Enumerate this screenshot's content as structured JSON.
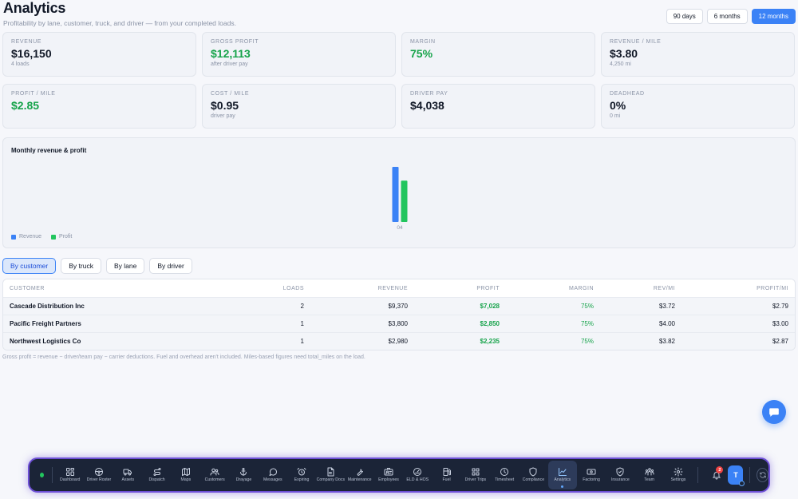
{
  "header": {
    "title": "Analytics",
    "subtitle": "Profitability by lane, customer, truck, and driver — from your completed loads."
  },
  "range": {
    "options": [
      "90 days",
      "6 months",
      "12 months"
    ],
    "selected": "12 months"
  },
  "kpis": [
    {
      "label": "Revenue",
      "value": "$16,150",
      "sub": "4 loads",
      "green": false
    },
    {
      "label": "Gross profit",
      "value": "$12,113",
      "sub": "after driver pay",
      "green": true
    },
    {
      "label": "Margin",
      "value": "75%",
      "sub": "",
      "green": true
    },
    {
      "label": "Revenue / mile",
      "value": "$3.80",
      "sub": "4,250 mi",
      "green": false
    },
    {
      "label": "Profit / mile",
      "value": "$2.85",
      "sub": "",
      "green": true
    },
    {
      "label": "Cost / mile",
      "value": "$0.95",
      "sub": "driver pay",
      "green": false
    },
    {
      "label": "Driver pay",
      "value": "$4,038",
      "sub": "",
      "green": false
    },
    {
      "label": "Deadhead",
      "value": "0%",
      "sub": "0 mi",
      "green": false
    }
  ],
  "chart": {
    "title": "Monthly revenue & profit",
    "legend": {
      "revenue": "Revenue",
      "profit": "Profit"
    },
    "colors": {
      "revenue": "#3b82f6",
      "profit": "#22c55e"
    }
  },
  "chart_data": {
    "type": "bar",
    "title": "Monthly revenue & profit",
    "categories": [
      "04"
    ],
    "series": [
      {
        "name": "Revenue",
        "values": [
          16150
        ]
      },
      {
        "name": "Profit",
        "values": [
          12113
        ]
      }
    ],
    "ylim": [
      0,
      16150
    ],
    "grid": false,
    "legend_position": "bottom-left"
  },
  "tabs": {
    "items": [
      "By customer",
      "By truck",
      "By lane",
      "By driver"
    ],
    "selected": "By customer"
  },
  "table": {
    "columns": [
      "Customer",
      "Loads",
      "Revenue",
      "Profit",
      "Margin",
      "Rev/mi",
      "Profit/mi"
    ],
    "rows": [
      [
        "Cascade Distribution Inc",
        "2",
        "$9,370",
        "$7,028",
        "75%",
        "$3.72",
        "$2.79"
      ],
      [
        "Pacific Freight Partners",
        "1",
        "$3,800",
        "$2,850",
        "75%",
        "$4.00",
        "$3.00"
      ],
      [
        "Northwest Logistics Co",
        "1",
        "$2,980",
        "$2,235",
        "75%",
        "$3.82",
        "$2.87"
      ]
    ]
  },
  "footnote": "Gross profit = revenue − driver/team pay − carrier deductions. Fuel and overhead aren't included. Miles-based figures need total_miles on the load.",
  "dock": {
    "items": [
      {
        "label": "Dashboard",
        "icon": "dashboard-icon"
      },
      {
        "label": "Driver Roster",
        "icon": "steering-wheel-icon"
      },
      {
        "label": "Assets",
        "icon": "truck-icon"
      },
      {
        "label": "Dispatch",
        "icon": "route-icon"
      },
      {
        "label": "Maps",
        "icon": "map-icon"
      },
      {
        "label": "Customers",
        "icon": "users-icon"
      },
      {
        "label": "Drayage",
        "icon": "anchor-icon"
      },
      {
        "label": "Messages",
        "icon": "message-icon"
      },
      {
        "label": "Expiring",
        "icon": "alarm-icon"
      },
      {
        "label": "Company Docs",
        "icon": "document-icon"
      },
      {
        "label": "Maintenance",
        "icon": "wrench-icon"
      },
      {
        "label": "Employees",
        "icon": "id-card-icon"
      },
      {
        "label": "ELD & HOS",
        "icon": "gauge-icon"
      },
      {
        "label": "Fuel",
        "icon": "fuel-icon"
      },
      {
        "label": "Driver Trips",
        "icon": "grid-icon"
      },
      {
        "label": "Timesheet",
        "icon": "clock-icon"
      },
      {
        "label": "Compliance",
        "icon": "shield-icon"
      },
      {
        "label": "Analytics",
        "icon": "chart-line-icon"
      },
      {
        "label": "Factoring",
        "icon": "cash-icon"
      },
      {
        "label": "Insurance",
        "icon": "shield-check-icon"
      },
      {
        "label": "Team",
        "icon": "team-icon"
      },
      {
        "label": "Settings",
        "icon": "gear-icon"
      }
    ],
    "active": "Analytics",
    "notifications": "2",
    "avatar_initial": "T"
  }
}
